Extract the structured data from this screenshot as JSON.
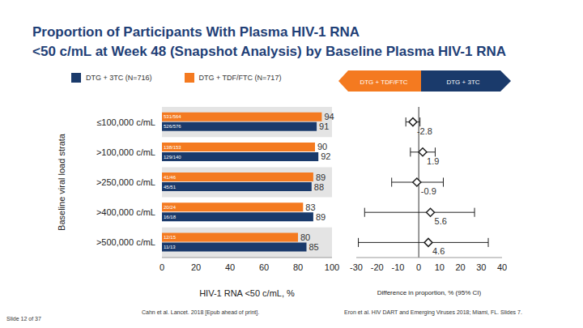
{
  "title": [
    "Proportion of Participants With Plasma HIV-1 RNA",
    "<50 c/mL at Week 48 (Snapshot Analysis) by Baseline Plasma HIV-1 RNA"
  ],
  "arrow_labels": {
    "left": "DTG + TDF/FTC",
    "right": "DTG + 3TC"
  },
  "footer": {
    "slide": "Slide 12 of 37",
    "references": [
      "Cahn et al. Lancet. 2018 [Epub ahead of print].",
      "Eron et al. HIV DART and Emerging Viruses 2018; Miami, FL. Slides 7."
    ]
  },
  "chart_data": [
    {
      "type": "bar",
      "orientation": "horizontal",
      "categories": [
        "≤100,000 c/mL",
        ">100,000 c/mL",
        ">250,000 c/mL",
        ">400,000 c/mL",
        ">500,000 c/mL"
      ],
      "series": [
        {
          "name": "DTG + 3TC (N=716)",
          "color": "#1a3a6b",
          "values": [
            91,
            92,
            88,
            89,
            85
          ],
          "counts": [
            "526/576",
            "129/140",
            "45/51",
            "16/18",
            "11/13"
          ]
        },
        {
          "name": "DTG + TDF/FTC (N=717)",
          "color": "#f47a20",
          "values": [
            94,
            90,
            89,
            83,
            80
          ],
          "counts": [
            "531/564",
            "138/153",
            "41/46",
            "20/24",
            "12/15"
          ]
        }
      ],
      "xlim": [
        0,
        100
      ],
      "xticks": [
        0,
        20,
        40,
        60,
        80,
        100
      ],
      "x_label": "HIV-1 RNA <50 c/mL, %",
      "y_label": "Baseline viral load strata",
      "data_labels": true
    },
    {
      "type": "scatter",
      "marker": "diamond",
      "color": "#222222",
      "values": [
        -2.8,
        1.9,
        -0.9,
        5.6,
        4.6
      ],
      "ci_low": [
        -6.2,
        -4.0,
        -13.0,
        -26.0,
        -29.0
      ],
      "ci_high": [
        0.6,
        7.9,
        11.8,
        26.8,
        33.4
      ],
      "reference_x": 0,
      "xlim": [
        -30,
        40
      ],
      "xticks": [
        -30,
        -20,
        -10,
        0,
        10,
        20,
        30,
        40
      ],
      "x_label": "Difference in proportion, % (95% CI)",
      "data_labels": true
    }
  ]
}
